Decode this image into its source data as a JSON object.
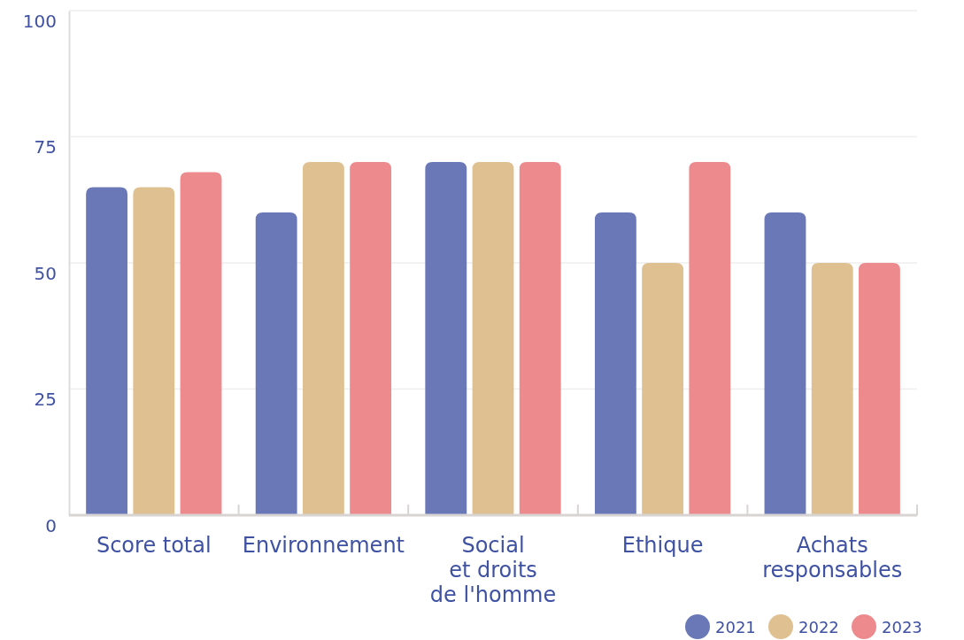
{
  "chart_data": {
    "type": "bar",
    "categories": [
      "Score total",
      "Environnement",
      "Social\net droits\nde l'homme",
      "Ethique",
      "Achats\nresponsables"
    ],
    "series": [
      {
        "name": "2021",
        "color": "#6a78b8",
        "values": [
          65,
          60,
          70,
          60,
          60
        ]
      },
      {
        "name": "2022",
        "color": "#dfc091",
        "values": [
          65,
          70,
          70,
          50,
          50
        ]
      },
      {
        "name": "2023",
        "color": "#ec8a8e",
        "values": [
          68,
          70,
          70,
          70,
          50
        ]
      }
    ],
    "ylim": [
      0,
      100
    ],
    "yticks": [
      0,
      25,
      50,
      75,
      100
    ],
    "grid": "y",
    "legend": "bottom right"
  }
}
